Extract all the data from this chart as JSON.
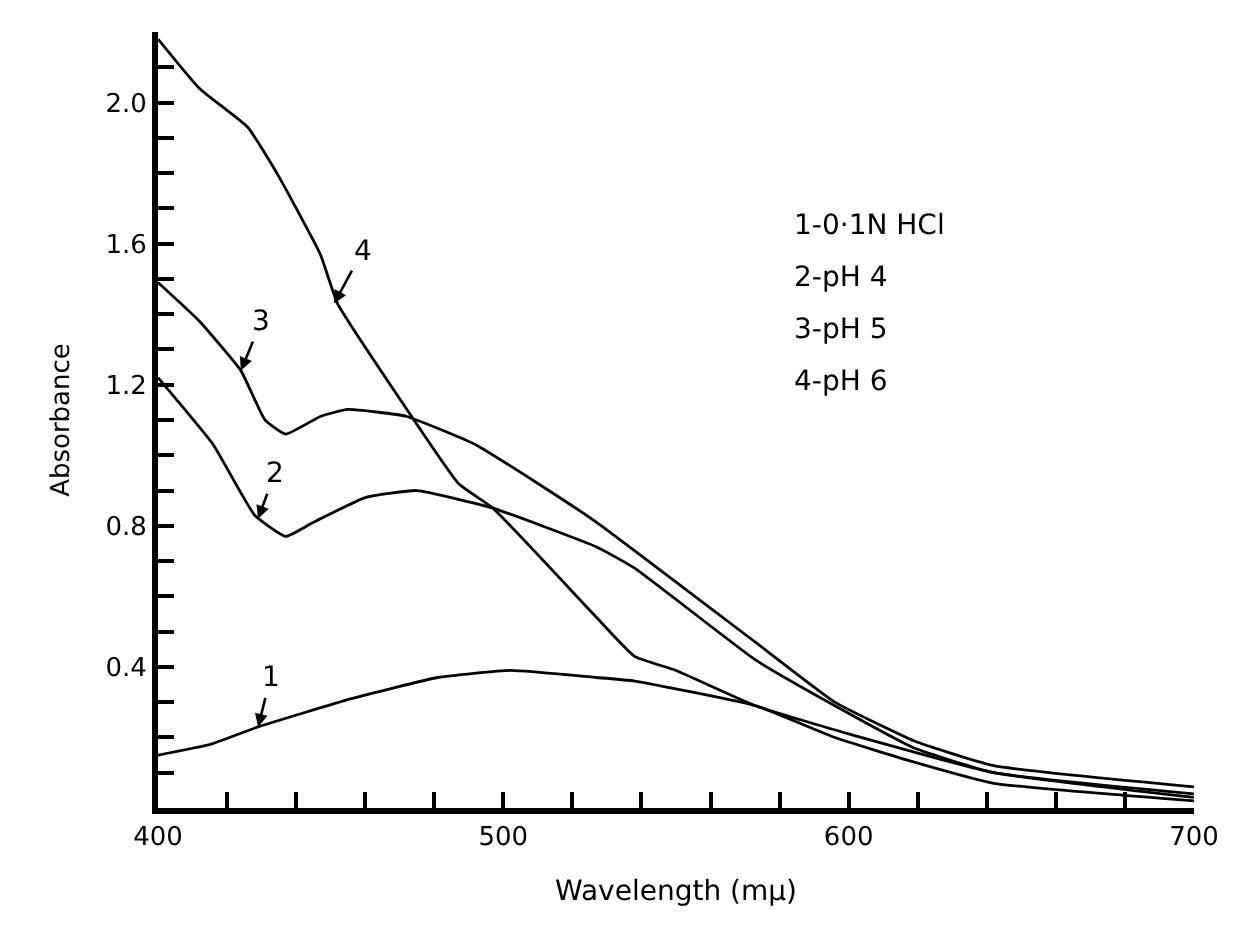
{
  "chart_data": {
    "type": "line",
    "xlabel": "Wavelength (mμ)",
    "ylabel": "Absorbance",
    "xlim": [
      400,
      700
    ],
    "ylim": [
      0,
      2.2
    ],
    "xticks": [
      400,
      {
        "value": 420,
        "label": null
      },
      {
        "value": 440,
        "label": null
      },
      {
        "value": 460,
        "label": null
      },
      {
        "value": 480,
        "label": null
      },
      500,
      {
        "value": 520,
        "label": null
      },
      {
        "value": 540,
        "label": null
      },
      {
        "value": 560,
        "label": null
      },
      {
        "value": 580,
        "label": null
      },
      600,
      {
        "value": 620,
        "label": null
      },
      {
        "value": 640,
        "label": null
      },
      {
        "value": 660,
        "label": null
      },
      {
        "value": 680,
        "label": null
      },
      700
    ],
    "yticks": [
      {
        "value": 0.1,
        "label": null
      },
      {
        "value": 0.2,
        "label": null
      },
      {
        "value": 0.3,
        "label": null
      },
      0.4,
      {
        "value": 0.5,
        "label": null
      },
      {
        "value": 0.6,
        "label": null
      },
      {
        "value": 0.7,
        "label": null
      },
      0.8,
      {
        "value": 0.9,
        "label": null
      },
      {
        "value": 1.0,
        "label": null
      },
      {
        "value": 1.1,
        "label": null
      },
      1.2,
      {
        "value": 1.3,
        "label": null
      },
      {
        "value": 1.4,
        "label": null
      },
      {
        "value": 1.5,
        "label": null
      },
      1.6,
      {
        "value": 1.7,
        "label": null
      },
      {
        "value": 1.8,
        "label": null
      },
      {
        "value": 1.9,
        "label": null
      },
      {
        "value": 2.0,
        "label": "2.0"
      },
      {
        "value": 2.1,
        "label": null
      }
    ],
    "marker": "none",
    "line_style": "solid",
    "series": [
      {
        "color": "#000000",
        "x": [
          400,
          415,
          429,
          456,
          481,
          502,
          527,
          538,
          573,
          596,
          619,
          642,
          700
        ],
        "values": [
          0.15,
          0.18,
          0.23,
          0.31,
          0.37,
          0.39,
          0.37,
          0.36,
          0.29,
          0.2,
          0.13,
          0.07,
          0.02
        ]
      },
      {
        "color": "#000000",
        "x": [
          400,
          416,
          428,
          437,
          445,
          460,
          475,
          497,
          527,
          538,
          573,
          596,
          619,
          642,
          700
        ],
        "values": [
          1.22,
          1.03,
          0.83,
          0.77,
          0.81,
          0.88,
          0.9,
          0.85,
          0.74,
          0.68,
          0.42,
          0.29,
          0.17,
          0.1,
          0.04
        ]
      },
      {
        "color": "#000000",
        "x": [
          400,
          412,
          424,
          431,
          437,
          447,
          455,
          472,
          492,
          510,
          527,
          573,
          596,
          619,
          642,
          700
        ],
        "values": [
          1.49,
          1.38,
          1.24,
          1.1,
          1.06,
          1.11,
          1.13,
          1.11,
          1.03,
          0.92,
          0.81,
          0.47,
          0.3,
          0.19,
          0.12,
          0.06
        ]
      },
      {
        "color": "#000000",
        "x": [
          400,
          412,
          426,
          435,
          447,
          452,
          470,
          487,
          497,
          527,
          538,
          550,
          573,
          600,
          642,
          700
        ],
        "values": [
          2.18,
          2.04,
          1.93,
          1.79,
          1.57,
          1.43,
          1.16,
          0.92,
          0.85,
          0.54,
          0.43,
          0.39,
          0.29,
          0.21,
          0.1,
          0.03
        ]
      }
    ],
    "annotations": [
      {
        "text": "1",
        "x": 429,
        "y": 0.23
      },
      {
        "text": "2",
        "x": 429,
        "y": 0.82
      },
      {
        "text": "3",
        "x": 424,
        "y": 1.24
      },
      {
        "text": "4",
        "x": 451,
        "y": 1.43
      },
      "1-0·1N HCl",
      "2-pH 4",
      "3-pH 5",
      "4-pH 6"
    ]
  }
}
